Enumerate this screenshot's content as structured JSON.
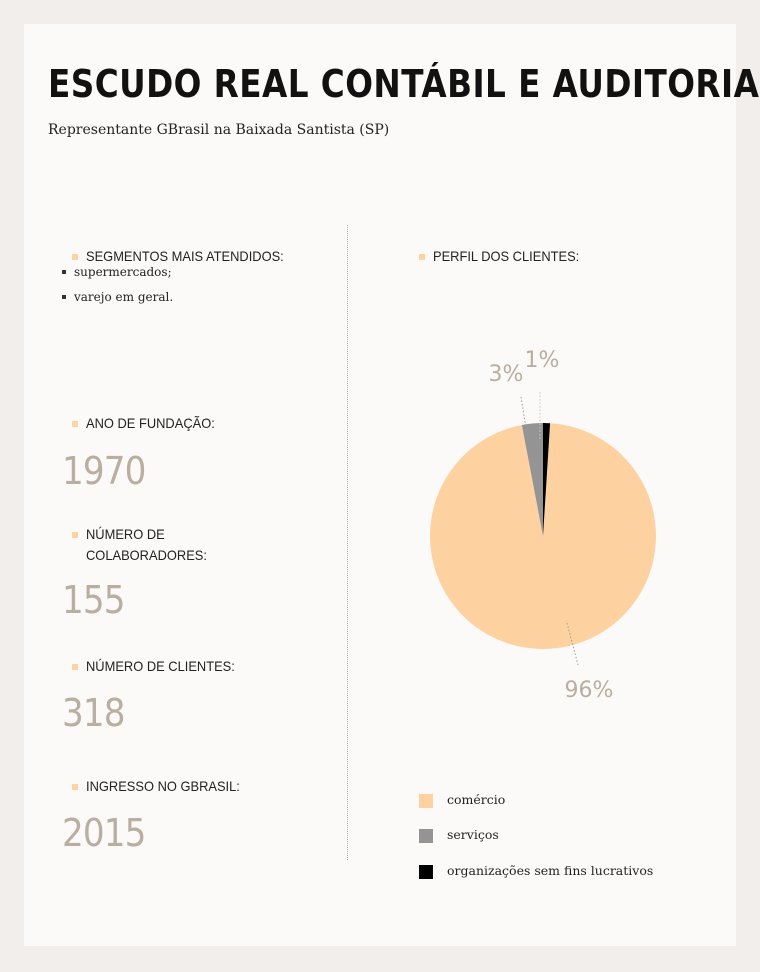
{
  "header": {
    "title": "ESCUDO REAL CONTÁBIL E AUDITORIA",
    "subtitle": "Representante GBrasil na Baixada Santista (SP)"
  },
  "segments": {
    "heading": "SEGMENTOS MAIS ATENDIDOS:",
    "items": [
      "supermercados;",
      "varejo em geral."
    ]
  },
  "stats": [
    {
      "label": "ANO DE FUNDAÇÃO:",
      "value": "1970"
    },
    {
      "label_line1": "NÚMERO DE",
      "label_line2": "COLABORADORES:",
      "value": "155"
    },
    {
      "label": "NÚMERO DE CLIENTES:",
      "value": "318"
    },
    {
      "label": "INGRESSO NO GBRASIL:",
      "value": "2015"
    }
  ],
  "profile": {
    "heading": "PERFIL DOS CLIENTES:"
  },
  "colors": {
    "accent": "#fcd3a1",
    "comercio": "#fdd2a0",
    "servicos": "#949494",
    "organizacoes": "#000000",
    "numbers": "#b9ae9f"
  },
  "chart_data": {
    "type": "pie",
    "title": "PERFIL DOS CLIENTES:",
    "slices": [
      {
        "label": "comércio",
        "value": 96,
        "value_label": "96%",
        "color": "#fdd2a0"
      },
      {
        "label": "serviços",
        "value": 3,
        "value_label": "3%",
        "color": "#949494"
      },
      {
        "label": "organizações sem fins lucrativos",
        "value": 1,
        "value_label": "1%",
        "color": "#000000"
      }
    ],
    "legend": [
      "comércio",
      "serviços",
      "organizações sem fins lucrativos"
    ],
    "legend_position": "bottom"
  }
}
